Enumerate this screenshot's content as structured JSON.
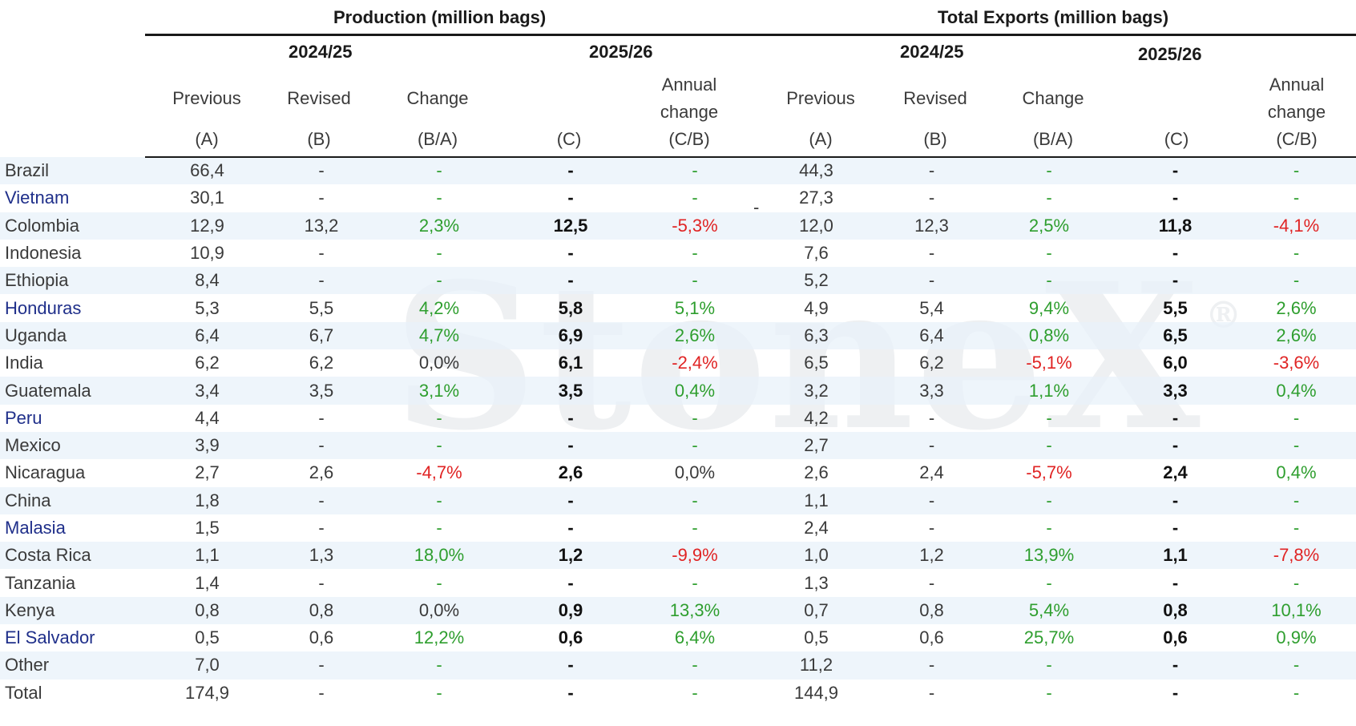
{
  "watermark": {
    "text": "StoneX",
    "mark": "®"
  },
  "header": {
    "production_title": "Production  (million bags)",
    "exports_title": "Total Exports (million bags)",
    "prod_year_1": "2024/25",
    "prod_year_2": "2025/26",
    "exp_year_1": "2024/25",
    "exp_year_2": "2025/26",
    "columns": {
      "previous": "Previous",
      "revised": "Revised",
      "change": "Change",
      "annual": "Annual",
      "annual2": "change",
      "a": "(A)",
      "b": "(B)",
      "ba": "(B/A)",
      "c": "(C)",
      "cb": "(C/B)"
    }
  },
  "colors": {
    "positive": "#2e9e2e",
    "negative": "#e02424",
    "highlight_country": "#1f2f8a"
  },
  "stray_dash": "-",
  "rows": [
    {
      "country": "Brazil",
      "highlight": false,
      "p_prev": "66,4",
      "p_rev": "-",
      "p_chg": "-",
      "p_chg_s": "pos",
      "p_c": "-",
      "p_ann": "-",
      "p_ann_s": "pos",
      "e_prev": "44,3",
      "e_rev": "-",
      "e_chg": "-",
      "e_chg_s": "pos",
      "e_c": "-",
      "e_ann": "-",
      "e_ann_s": "pos"
    },
    {
      "country": "Vietnam",
      "highlight": true,
      "p_prev": "30,1",
      "p_rev": "-",
      "p_chg": "-",
      "p_chg_s": "pos",
      "p_c": "-",
      "p_ann": "-",
      "p_ann_s": "pos",
      "e_prev": "27,3",
      "e_rev": "-",
      "e_chg": "-",
      "e_chg_s": "pos",
      "e_c": "-",
      "e_ann": "-",
      "e_ann_s": "pos"
    },
    {
      "country": "Colombia",
      "highlight": false,
      "p_prev": "12,9",
      "p_rev": "13,2",
      "p_chg": "2,3%",
      "p_chg_s": "pos",
      "p_c": "12,5",
      "p_ann": "-5,3%",
      "p_ann_s": "neg",
      "e_prev": "12,0",
      "e_rev": "12,3",
      "e_chg": "2,5%",
      "e_chg_s": "pos",
      "e_c": "11,8",
      "e_ann": "-4,1%",
      "e_ann_s": "neg"
    },
    {
      "country": "Indonesia",
      "highlight": false,
      "p_prev": "10,9",
      "p_rev": "-",
      "p_chg": "-",
      "p_chg_s": "pos",
      "p_c": "-",
      "p_ann": "-",
      "p_ann_s": "pos",
      "e_prev": "7,6",
      "e_rev": "-",
      "e_chg": "-",
      "e_chg_s": "pos",
      "e_c": "-",
      "e_ann": "-",
      "e_ann_s": "pos"
    },
    {
      "country": "Ethiopia",
      "highlight": false,
      "p_prev": "8,4",
      "p_rev": "-",
      "p_chg": "-",
      "p_chg_s": "pos",
      "p_c": "-",
      "p_ann": "-",
      "p_ann_s": "pos",
      "e_prev": "5,2",
      "e_rev": "-",
      "e_chg": "-",
      "e_chg_s": "pos",
      "e_c": "-",
      "e_ann": "-",
      "e_ann_s": "pos"
    },
    {
      "country": "Honduras",
      "highlight": true,
      "p_prev": "5,3",
      "p_rev": "5,5",
      "p_chg": "4,2%",
      "p_chg_s": "pos",
      "p_c": "5,8",
      "p_ann": "5,1%",
      "p_ann_s": "pos",
      "e_prev": "4,9",
      "e_rev": "5,4",
      "e_chg": "9,4%",
      "e_chg_s": "pos",
      "e_c": "5,5",
      "e_ann": "2,6%",
      "e_ann_s": "pos"
    },
    {
      "country": "Uganda",
      "highlight": false,
      "p_prev": "6,4",
      "p_rev": "6,7",
      "p_chg": "4,7%",
      "p_chg_s": "pos",
      "p_c": "6,9",
      "p_ann": "2,6%",
      "p_ann_s": "pos",
      "e_prev": "6,3",
      "e_rev": "6,4",
      "e_chg": "0,8%",
      "e_chg_s": "pos",
      "e_c": "6,5",
      "e_ann": "2,6%",
      "e_ann_s": "pos"
    },
    {
      "country": "India",
      "highlight": false,
      "p_prev": "6,2",
      "p_rev": "6,2",
      "p_chg": "0,0%",
      "p_chg_s": "neutral",
      "p_c": "6,1",
      "p_ann": "-2,4%",
      "p_ann_s": "neg",
      "e_prev": "6,5",
      "e_rev": "6,2",
      "e_chg": "-5,1%",
      "e_chg_s": "neg",
      "e_c": "6,0",
      "e_ann": "-3,6%",
      "e_ann_s": "neg"
    },
    {
      "country": "Guatemala",
      "highlight": false,
      "p_prev": "3,4",
      "p_rev": "3,5",
      "p_chg": "3,1%",
      "p_chg_s": "pos",
      "p_c": "3,5",
      "p_ann": "0,4%",
      "p_ann_s": "pos",
      "e_prev": "3,2",
      "e_rev": "3,3",
      "e_chg": "1,1%",
      "e_chg_s": "pos",
      "e_c": "3,3",
      "e_ann": "0,4%",
      "e_ann_s": "pos"
    },
    {
      "country": "Peru",
      "highlight": true,
      "p_prev": "4,4",
      "p_rev": "-",
      "p_chg": "-",
      "p_chg_s": "pos",
      "p_c": "-",
      "p_ann": "-",
      "p_ann_s": "pos",
      "e_prev": "4,2",
      "e_rev": "-",
      "e_chg": "-",
      "e_chg_s": "pos",
      "e_c": "-",
      "e_ann": "-",
      "e_ann_s": "pos"
    },
    {
      "country": "Mexico",
      "highlight": false,
      "p_prev": "3,9",
      "p_rev": "-",
      "p_chg": "-",
      "p_chg_s": "pos",
      "p_c": "-",
      "p_ann": "-",
      "p_ann_s": "pos",
      "e_prev": "2,7",
      "e_rev": "-",
      "e_chg": "-",
      "e_chg_s": "pos",
      "e_c": "-",
      "e_ann": "-",
      "e_ann_s": "pos"
    },
    {
      "country": "Nicaragua",
      "highlight": false,
      "p_prev": "2,7",
      "p_rev": "2,6",
      "p_chg": "-4,7%",
      "p_chg_s": "neg",
      "p_c": "2,6",
      "p_ann": "0,0%",
      "p_ann_s": "neutral",
      "e_prev": "2,6",
      "e_rev": "2,4",
      "e_chg": "-5,7%",
      "e_chg_s": "neg",
      "e_c": "2,4",
      "e_ann": "0,4%",
      "e_ann_s": "pos"
    },
    {
      "country": "China",
      "highlight": false,
      "p_prev": "1,8",
      "p_rev": "-",
      "p_chg": "-",
      "p_chg_s": "pos",
      "p_c": "-",
      "p_ann": "-",
      "p_ann_s": "pos",
      "e_prev": "1,1",
      "e_rev": "-",
      "e_chg": "-",
      "e_chg_s": "pos",
      "e_c": "-",
      "e_ann": "-",
      "e_ann_s": "pos"
    },
    {
      "country": "Malasia",
      "highlight": true,
      "p_prev": "1,5",
      "p_rev": "-",
      "p_chg": "-",
      "p_chg_s": "pos",
      "p_c": "-",
      "p_ann": "-",
      "p_ann_s": "pos",
      "e_prev": "2,4",
      "e_rev": "-",
      "e_chg": "-",
      "e_chg_s": "pos",
      "e_c": "-",
      "e_ann": "-",
      "e_ann_s": "pos"
    },
    {
      "country": "Costa Rica",
      "highlight": false,
      "p_prev": "1,1",
      "p_rev": "1,3",
      "p_chg": "18,0%",
      "p_chg_s": "pos",
      "p_c": "1,2",
      "p_ann": "-9,9%",
      "p_ann_s": "neg",
      "e_prev": "1,0",
      "e_rev": "1,2",
      "e_chg": "13,9%",
      "e_chg_s": "pos",
      "e_c": "1,1",
      "e_ann": "-7,8%",
      "e_ann_s": "neg"
    },
    {
      "country": "Tanzania",
      "highlight": false,
      "p_prev": "1,4",
      "p_rev": "-",
      "p_chg": "-",
      "p_chg_s": "pos",
      "p_c": "-",
      "p_ann": "-",
      "p_ann_s": "pos",
      "e_prev": "1,3",
      "e_rev": "-",
      "e_chg": "-",
      "e_chg_s": "pos",
      "e_c": "-",
      "e_ann": "-",
      "e_ann_s": "pos"
    },
    {
      "country": "Kenya",
      "highlight": false,
      "p_prev": "0,8",
      "p_rev": "0,8",
      "p_chg": "0,0%",
      "p_chg_s": "neutral",
      "p_c": "0,9",
      "p_ann": "13,3%",
      "p_ann_s": "pos",
      "e_prev": "0,7",
      "e_rev": "0,8",
      "e_chg": "5,4%",
      "e_chg_s": "pos",
      "e_c": "0,8",
      "e_ann": "10,1%",
      "e_ann_s": "pos"
    },
    {
      "country": "El Salvador",
      "highlight": true,
      "p_prev": "0,5",
      "p_rev": "0,6",
      "p_chg": "12,2%",
      "p_chg_s": "pos",
      "p_c": "0,6",
      "p_ann": "6,4%",
      "p_ann_s": "pos",
      "e_prev": "0,5",
      "e_rev": "0,6",
      "e_chg": "25,7%",
      "e_chg_s": "pos",
      "e_c": "0,6",
      "e_ann": "0,9%",
      "e_ann_s": "pos"
    },
    {
      "country": "Other",
      "highlight": false,
      "p_prev": "7,0",
      "p_rev": "-",
      "p_chg": "-",
      "p_chg_s": "pos",
      "p_c": "-",
      "p_ann": "-",
      "p_ann_s": "pos",
      "e_prev": "11,2",
      "e_rev": "-",
      "e_chg": "-",
      "e_chg_s": "pos",
      "e_c": "-",
      "e_ann": "-",
      "e_ann_s": "pos"
    },
    {
      "country": "Total",
      "highlight": false,
      "p_prev": "174,9",
      "p_rev": "-",
      "p_chg": "-",
      "p_chg_s": "pos",
      "p_c": "-",
      "p_ann": "-",
      "p_ann_s": "pos",
      "e_prev": "144,9",
      "e_rev": "-",
      "e_chg": "-",
      "e_chg_s": "pos",
      "e_c": "-",
      "e_ann": "-",
      "e_ann_s": "pos"
    }
  ]
}
